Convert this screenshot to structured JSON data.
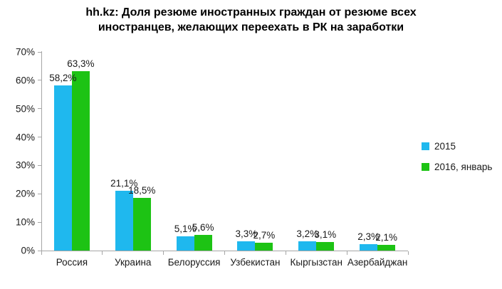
{
  "chart_data": {
    "type": "bar",
    "title": "hh.kz: Доля резюме иностранных граждан от резюме всех иностранцев, желающих переехать в РК на заработки",
    "categories": [
      "Россия",
      "Украина",
      "Белоруссия",
      "Узбекистан",
      "Кыргызстан",
      "Азербайджан"
    ],
    "series": [
      {
        "name": "2015",
        "color": "#1fb8ee",
        "values": [
          58.2,
          21.1,
          5.1,
          3.3,
          3.2,
          2.3
        ],
        "labels": [
          "58,2%",
          "21,1%",
          "5,1%",
          "3,3%",
          "3,2%",
          "2,3%"
        ]
      },
      {
        "name": "2016, январь",
        "color": "#1dc314",
        "values": [
          63.3,
          18.5,
          5.6,
          2.7,
          3.1,
          2.1
        ],
        "labels": [
          "63,3%",
          "18,5%",
          "5,6%",
          "2,7%",
          "3,1%",
          "2,1%"
        ]
      }
    ],
    "xlabel": "",
    "ylabel": "",
    "ylim": [
      0,
      70
    ],
    "y_ticks": [
      "0%",
      "10%",
      "20%",
      "30%",
      "40%",
      "50%",
      "60%",
      "70%"
    ],
    "grid": false,
    "legend_position": "right",
    "axis_color": "#a6a6a6",
    "text_color": "#1a1a1a"
  }
}
